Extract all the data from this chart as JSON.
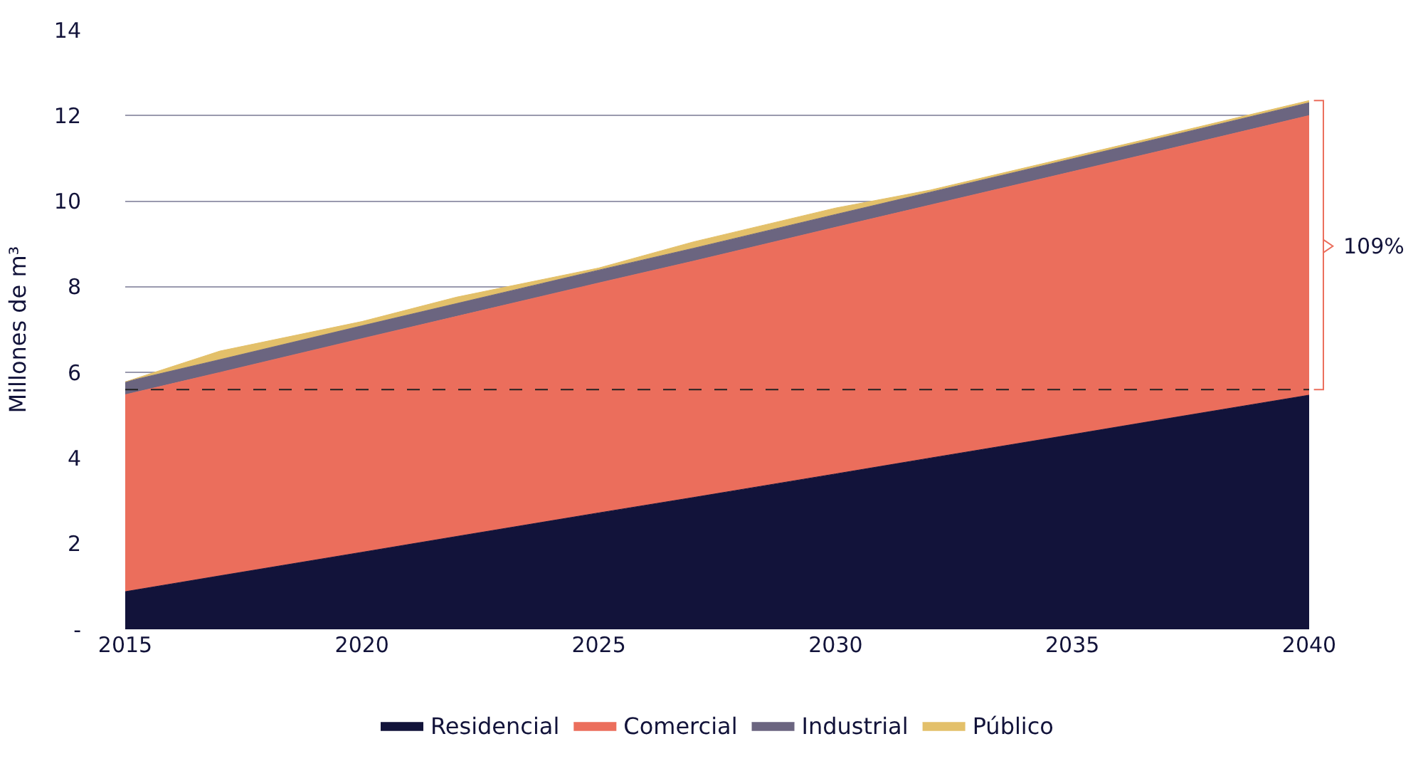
{
  "chart_data": {
    "type": "area",
    "stacked": true,
    "ylabel": "Millones de m³",
    "x": [
      2015,
      2017,
      2020,
      2022,
      2025,
      2027,
      2030,
      2032,
      2035,
      2037,
      2040
    ],
    "series": [
      {
        "name": "Residencial",
        "color": "#12133a",
        "values": [
          0.88,
          1.25,
          1.8,
          2.17,
          2.72,
          3.08,
          3.63,
          4.0,
          4.55,
          4.92,
          5.47
        ]
      },
      {
        "name": "Comercial",
        "color": "#eb6e5c",
        "values": [
          4.6,
          4.75,
          4.99,
          5.14,
          5.37,
          5.52,
          5.76,
          5.91,
          6.14,
          6.29,
          6.53
        ]
      },
      {
        "name": "Industrial",
        "color": "#6b6580",
        "values": [
          0.3,
          0.3,
          0.3,
          0.3,
          0.3,
          0.3,
          0.3,
          0.3,
          0.3,
          0.3,
          0.3
        ]
      },
      {
        "name": "Público",
        "color": "#e3c06a",
        "values": [
          0.0,
          0.2,
          0.1,
          0.15,
          0.05,
          0.15,
          0.15,
          0.05,
          0.05,
          0.05,
          0.05
        ]
      }
    ],
    "xlim": [
      2015,
      2040
    ],
    "xticks": [
      2015,
      2020,
      2025,
      2030,
      2035,
      2040
    ],
    "ylim": [
      0,
      14
    ],
    "yticks": [
      {
        "value": 0,
        "label": "-"
      },
      2,
      4,
      6,
      8,
      10,
      12,
      14
    ],
    "grid": "y",
    "legend": "bottom",
    "marker": "none",
    "ref_lines": [
      {
        "axis": "y",
        "value": 5.6,
        "label": null,
        "color": "#222222",
        "line_style": "dashed"
      }
    ],
    "annotations": [
      {
        "text": "109%",
        "x": 2040,
        "y": 8.95
      }
    ]
  }
}
